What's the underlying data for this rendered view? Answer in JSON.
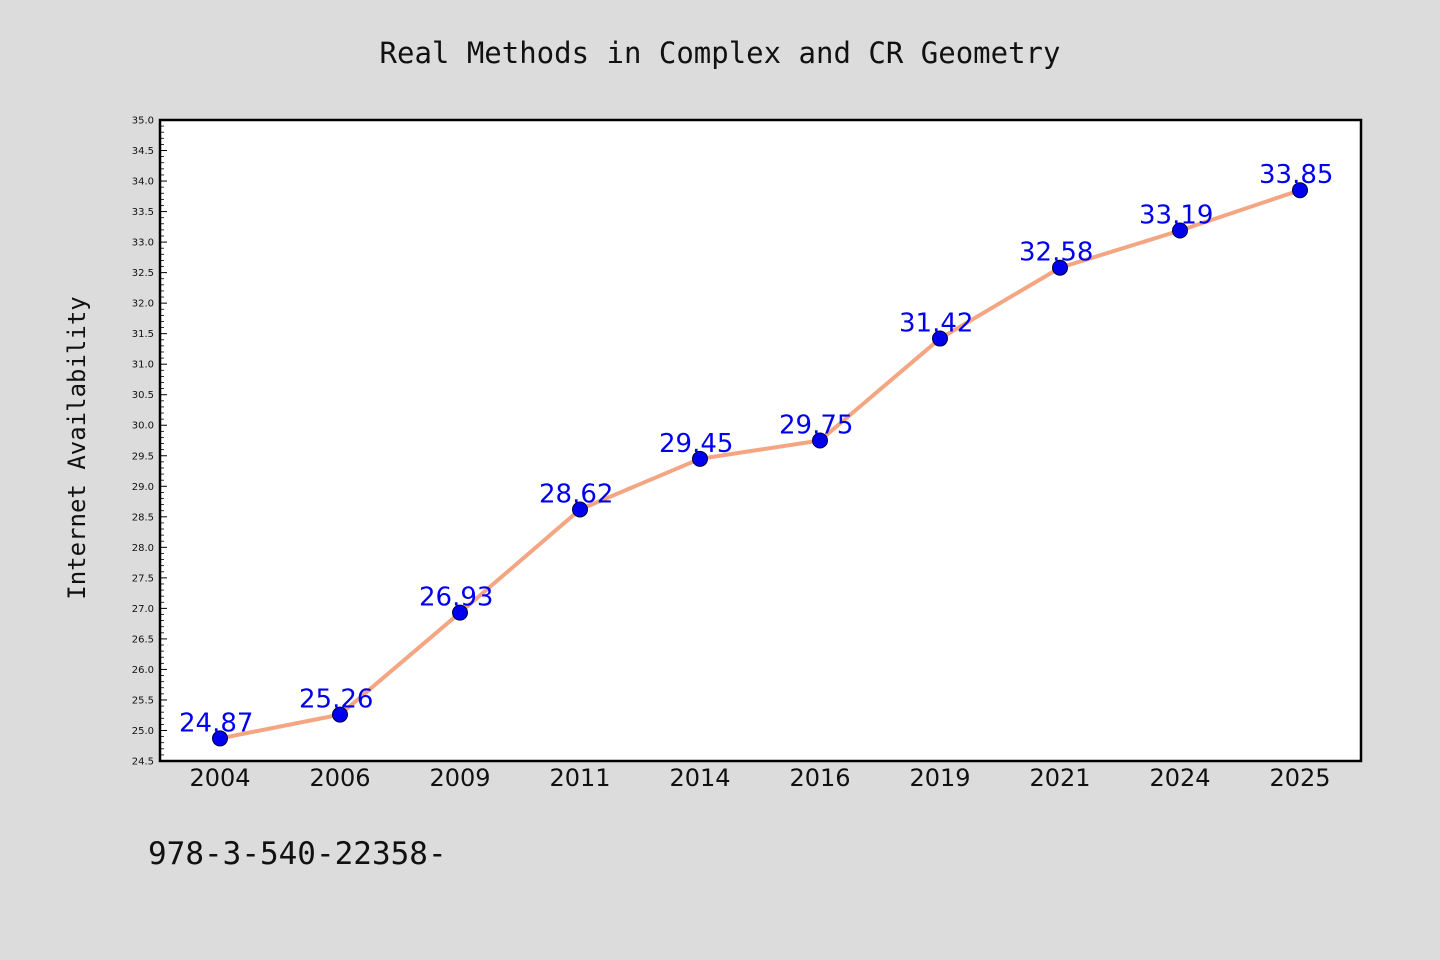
{
  "chart_data": {
    "type": "line",
    "title": "Real Methods in Complex and CR Geometry",
    "ylabel": "Internet Availability",
    "xlabel": "",
    "categories": [
      "2004",
      "2006",
      "2009",
      "2011",
      "2014",
      "2016",
      "2019",
      "2021",
      "2024",
      "2025"
    ],
    "series": [
      {
        "values": [
          24.87,
          25.26,
          26.93,
          28.62,
          29.45,
          29.75,
          31.42,
          32.58,
          33.19,
          33.85
        ]
      }
    ],
    "data_labels": [
      "24.87",
      "25.26",
      "26.93",
      "28.62",
      "29.45",
      "29.75",
      "31.42",
      "32.58",
      "33.19",
      "33.85"
    ],
    "ylim": [
      24.5,
      35.0
    ],
    "ytick_step": 0.5,
    "grid": false,
    "legend": "none",
    "footer_text": "978-3-540-22358-",
    "colors": {
      "background": "#dcdcdc",
      "plot_background": "#ffffff",
      "line": "#f4a582",
      "marker": "#0000ee",
      "data_label": "#0000ee"
    }
  }
}
